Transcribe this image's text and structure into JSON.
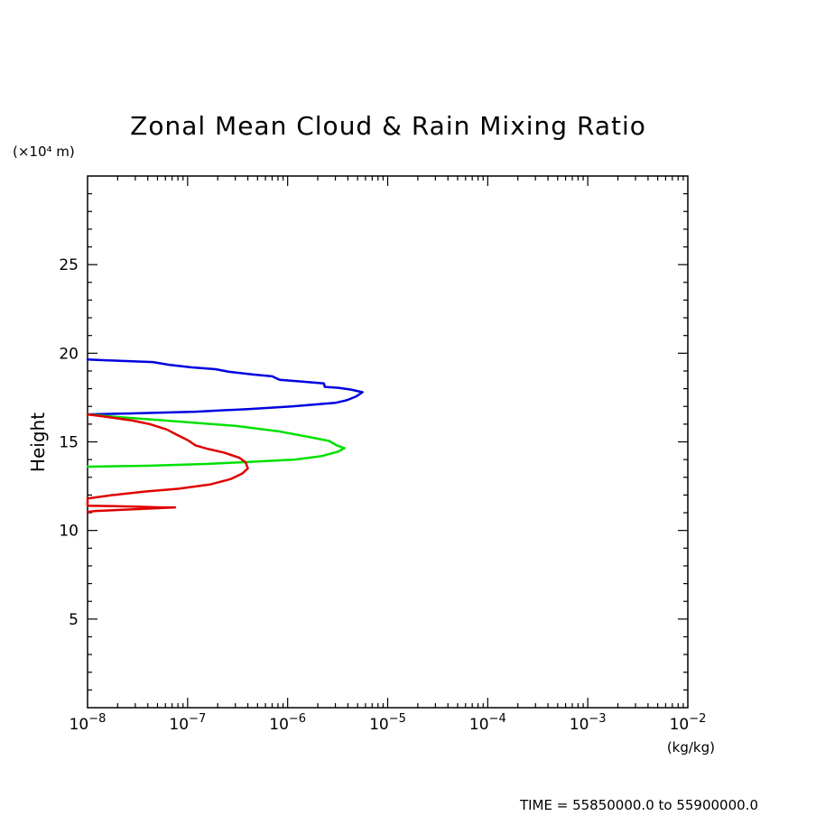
{
  "chart_data": {
    "type": "line",
    "title": "Zonal Mean Cloud & Rain Mixing Ratio",
    "ylabel": "Height",
    "yunit": "(×10⁴ m)",
    "xunit": "(kg/kg)",
    "xscale": "log",
    "xlim": [
      1e-08,
      0.01
    ],
    "ylim": [
      0,
      30
    ],
    "grid": false,
    "footer": "TIME = 55850000.0 to 55900000.0",
    "y_ticks": [
      5,
      10,
      15,
      20,
      25
    ],
    "y_tick_labels": [
      "5",
      "10",
      "15",
      "20",
      "25"
    ],
    "x_ticks": [
      {
        "value": 1e-08,
        "base": "10",
        "exp": "−8"
      },
      {
        "value": 1e-07,
        "base": "10",
        "exp": "−7"
      },
      {
        "value": 1e-06,
        "base": "10",
        "exp": "−6"
      },
      {
        "value": 1e-05,
        "base": "10",
        "exp": "−5"
      },
      {
        "value": 0.0001,
        "base": "10",
        "exp": "−4"
      },
      {
        "value": 0.001,
        "base": "10",
        "exp": "−3"
      },
      {
        "value": 0.01,
        "base": "10",
        "exp": "−2"
      }
    ],
    "series": [
      {
        "color": "#0000e0",
        "points": [
          [
            1e-08,
            19.65
          ],
          [
            1.6e-08,
            19.6
          ],
          [
            4.5e-08,
            19.5
          ],
          [
            6.5e-08,
            19.35
          ],
          [
            1.1e-07,
            19.2
          ],
          [
            1.45e-07,
            19.15
          ],
          [
            1.9e-07,
            19.1
          ],
          [
            2.6e-07,
            18.95
          ],
          [
            4.5e-07,
            18.8
          ],
          [
            7e-07,
            18.7
          ],
          [
            8.3e-07,
            18.5
          ],
          [
            1.4e-06,
            18.4
          ],
          [
            2.3e-06,
            18.3
          ],
          [
            2.35e-06,
            18.1
          ],
          [
            3.2e-06,
            18.05
          ],
          [
            4.3e-06,
            17.95
          ],
          [
            5.6e-06,
            17.8
          ],
          [
            4.8e-06,
            17.55
          ],
          [
            3.9e-06,
            17.35
          ],
          [
            3e-06,
            17.2
          ],
          [
            1.1e-06,
            17.0
          ],
          [
            4e-07,
            16.85
          ],
          [
            1.2e-07,
            16.7
          ],
          [
            2.5e-08,
            16.6
          ],
          [
            1e-08,
            16.55
          ]
        ]
      },
      {
        "color": "#00e000",
        "points": [
          [
            1e-08,
            16.55
          ],
          [
            2e-08,
            16.4
          ],
          [
            6e-08,
            16.2
          ],
          [
            3e-07,
            15.9
          ],
          [
            8e-07,
            15.6
          ],
          [
            1.55e-06,
            15.3
          ],
          [
            2.6e-06,
            15.05
          ],
          [
            3.1e-06,
            14.8
          ],
          [
            3.7e-06,
            14.65
          ],
          [
            3.2e-06,
            14.45
          ],
          [
            2.2e-06,
            14.2
          ],
          [
            1.2e-06,
            14.0
          ],
          [
            3.5e-07,
            13.85
          ],
          [
            1.5e-07,
            13.75
          ],
          [
            4e-08,
            13.65
          ],
          [
            1e-08,
            13.6
          ]
        ]
      },
      {
        "color": "#e00000",
        "points": [
          [
            1e-08,
            16.55
          ],
          [
            1.6e-08,
            16.4
          ],
          [
            2.8e-08,
            16.2
          ],
          [
            4.2e-08,
            16.0
          ],
          [
            6.2e-08,
            15.7
          ],
          [
            7.8e-08,
            15.4
          ],
          [
            1e-07,
            15.1
          ],
          [
            1.2e-07,
            14.8
          ],
          [
            1.6e-07,
            14.6
          ],
          [
            2.3e-07,
            14.4
          ],
          [
            3.3e-07,
            14.1
          ],
          [
            3.8e-07,
            13.85
          ],
          [
            4e-07,
            13.5
          ],
          [
            3.5e-07,
            13.2
          ],
          [
            2.7e-07,
            12.9
          ],
          [
            1.7e-07,
            12.6
          ],
          [
            8e-08,
            12.35
          ],
          [
            3.8e-08,
            12.2
          ],
          [
            1.8e-08,
            12.0
          ],
          [
            1e-08,
            11.8
          ],
          [
            1e-08,
            11.75
          ],
          [
            1e-08,
            11.4
          ],
          [
            3e-08,
            11.35
          ],
          [
            5.5e-08,
            11.3
          ],
          [
            7.5e-08,
            11.3
          ],
          [
            3e-08,
            11.2
          ],
          [
            1.2e-08,
            11.1
          ],
          [
            1e-08,
            11.05
          ]
        ]
      }
    ]
  }
}
